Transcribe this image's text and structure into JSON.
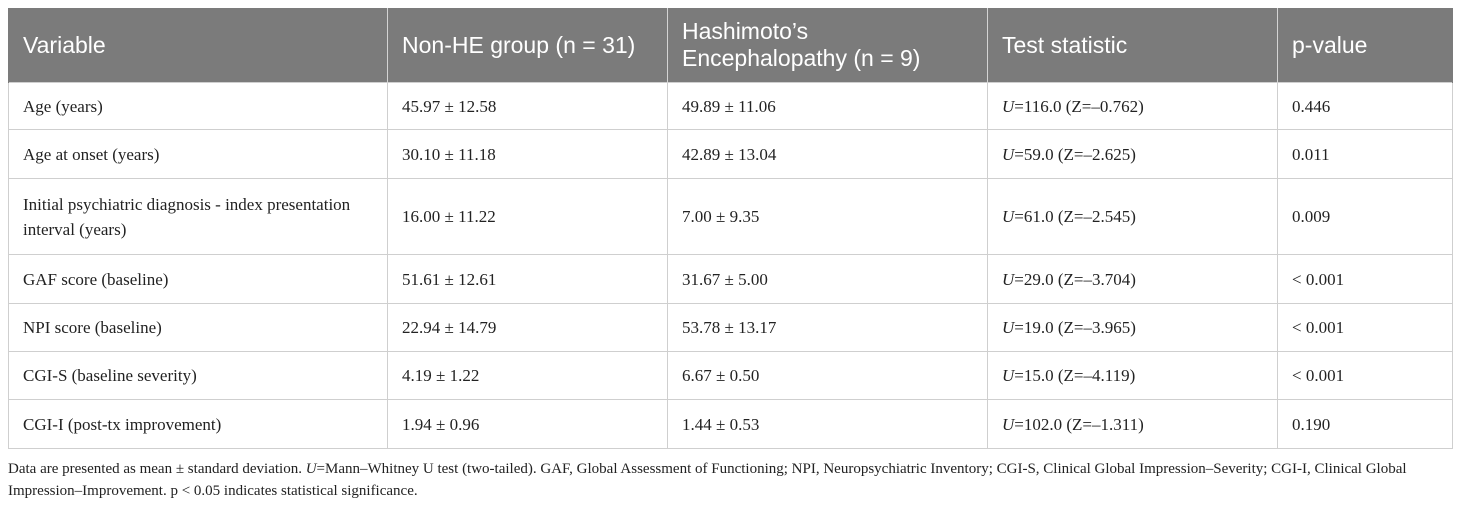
{
  "table": {
    "headers": [
      "Variable",
      "Non-HE group (n = 31)",
      "Hashimoto’s Encephalopathy (n = 9)",
      "Test statistic",
      "p-value"
    ],
    "rows": [
      {
        "variable": "Age (years)",
        "non_he": "45.97 ± 12.58",
        "he": "49.89 ± 11.06",
        "stat_u": "U",
        "stat_rest": "=116.0 (Z=–0.762)",
        "p": "0.446"
      },
      {
        "variable": "Age at onset (years)",
        "non_he": "30.10 ± 11.18",
        "he": "42.89 ± 13.04",
        "stat_u": "U",
        "stat_rest": "=59.0 (Z=–2.625)",
        "p": "0.011"
      },
      {
        "variable": "Initial psychiatric diagnosis - index presentation interval (years)",
        "non_he": "16.00 ± 11.22",
        "he": "7.00 ± 9.35",
        "stat_u": "U",
        "stat_rest": "=61.0 (Z=–2.545)",
        "p": "0.009"
      },
      {
        "variable": "GAF score (baseline)",
        "non_he": "51.61 ± 12.61",
        "he": "31.67 ± 5.00",
        "stat_u": "U",
        "stat_rest": "=29.0 (Z=–3.704)",
        "p": "< 0.001"
      },
      {
        "variable": "NPI score (baseline)",
        "non_he": "22.94 ± 14.79",
        "he": "53.78 ± 13.17",
        "stat_u": "U",
        "stat_rest": "=19.0 (Z=–3.965)",
        "p": "< 0.001"
      },
      {
        "variable": "CGI-S (baseline severity)",
        "non_he": "4.19 ± 1.22",
        "he": "6.67 ± 0.50",
        "stat_u": "U",
        "stat_rest": "=15.0 (Z=–4.119)",
        "p": "< 0.001"
      },
      {
        "variable": "CGI-I (post-tx improvement)",
        "non_he": "1.94 ± 0.96",
        "he": "1.44 ± 0.53",
        "stat_u": "U",
        "stat_rest": "=102.0 (Z=–1.311)",
        "p": "0.190"
      }
    ]
  },
  "footnote": {
    "part1": "Data are presented as mean ± standard deviation. ",
    "u": "U",
    "part2": "=Mann–Whitney U test (two-tailed). GAF, Global Assessment of Functioning; NPI, Neuropsychiatric Inventory; CGI-S, Clinical Global Impression–Severity; CGI-I, Clinical Global Impression–Improvement. p < 0.05 indicates statistical significance."
  },
  "colors": {
    "header_bg": "#7b7b7b",
    "header_text": "#ffffff",
    "grid": "#cfcfcf"
  }
}
